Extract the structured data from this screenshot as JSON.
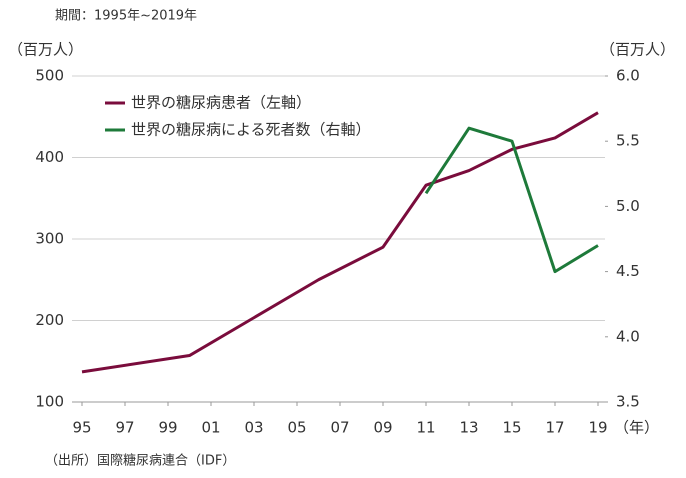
{
  "chart_data": {
    "type": "line",
    "subtitle": "期間：1995年~2019年",
    "y_label": "（百万人）",
    "y2_label": "（百万人）",
    "x_unit": "（年）",
    "source": "（出所）国際糖尿病連合（IDF）",
    "x": [
      1995,
      2000,
      2006,
      2009,
      2011,
      2013,
      2015,
      2017,
      2019
    ],
    "xlim": [
      1995,
      2019
    ],
    "xticks": [
      {
        "value": 1995,
        "label": "95"
      },
      {
        "value": 1997,
        "label": "97"
      },
      {
        "value": 1999,
        "label": "99"
      },
      {
        "value": 2001,
        "label": "01"
      },
      {
        "value": 2003,
        "label": "03"
      },
      {
        "value": 2005,
        "label": "05"
      },
      {
        "value": 2007,
        "label": "07"
      },
      {
        "value": 2009,
        "label": "09"
      },
      {
        "value": 2011,
        "label": "11"
      },
      {
        "value": 2013,
        "label": "13"
      },
      {
        "value": 2015,
        "label": "15"
      },
      {
        "value": 2017,
        "label": "17"
      },
      {
        "value": 2019,
        "label": "19"
      }
    ],
    "ylim": [
      100,
      500
    ],
    "yticks": [
      100,
      200,
      300,
      400,
      500
    ],
    "y2lim": [
      3.5,
      6.0
    ],
    "y2ticks": [
      3.5,
      {
        "value": 4.0,
        "label": "4.0"
      },
      4.5,
      {
        "value": 5.0,
        "label": "5.0"
      },
      5.5,
      {
        "value": 6.0,
        "label": "6.0"
      }
    ],
    "grid": true,
    "legend": "upper left",
    "series": [
      {
        "name": "世界の糖尿病患者（左軸）",
        "color": "#7a0c3c",
        "values": [
          137,
          157,
          250,
          290,
          366,
          384,
          410,
          424,
          455
        ]
      },
      {
        "name": "世界の糖尿病による死者数（右軸）",
        "color": "#1e7a3a",
        "axis": "y2",
        "values": [
          null,
          null,
          null,
          null,
          5.1,
          5.6,
          5.5,
          4.5,
          4.7
        ]
      }
    ]
  }
}
